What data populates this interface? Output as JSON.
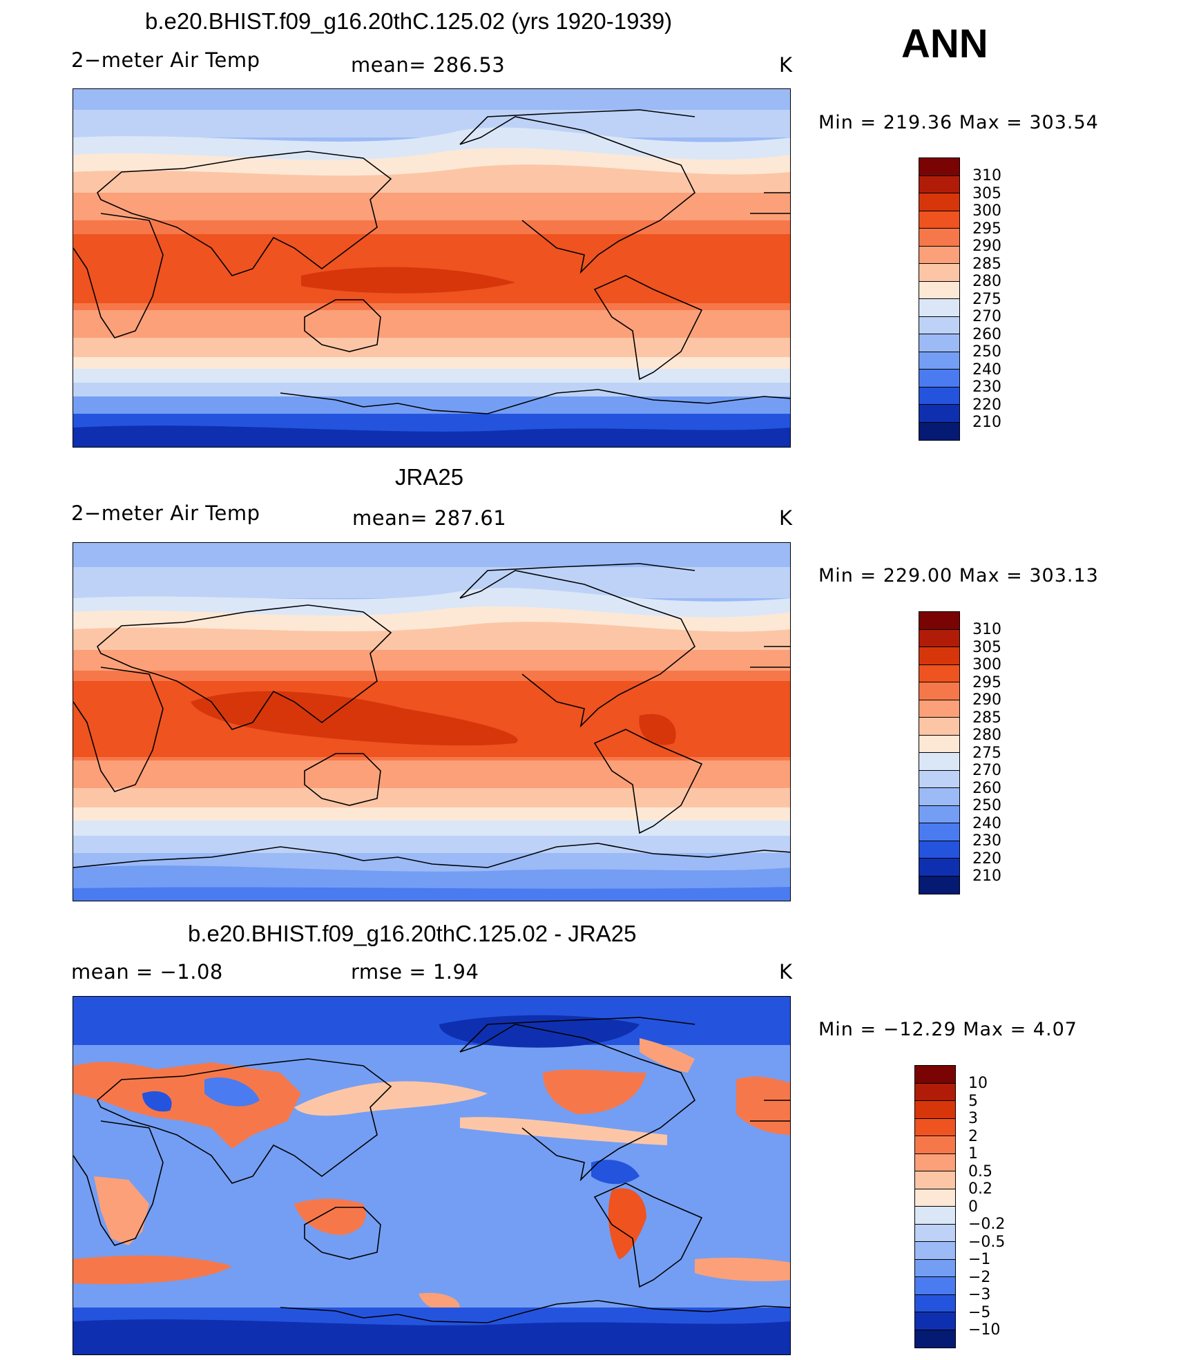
{
  "season": "ANN",
  "panels": [
    {
      "title": "b.e20.BHIST.f09_g16.20thC.125.02 (yrs 1920-1939)",
      "left_label": "2−meter Air Temp",
      "center_label": "mean=  286.53",
      "units": "K",
      "minmax": "Min  =  219.36  Max  =  303.54",
      "legend_levels": [
        "310",
        "305",
        "300",
        "295",
        "290",
        "285",
        "280",
        "275",
        "270",
        "260",
        "250",
        "240",
        "230",
        "220",
        "210"
      ],
      "legend_colors": [
        "#7a0403",
        "#b01c07",
        "#d7360b",
        "#ee5320",
        "#f6784a",
        "#fba079",
        "#fcc6a6",
        "#fde8d6",
        "#dbe7f7",
        "#bdd2f6",
        "#9bbaf6",
        "#749ef3",
        "#4a7bf0",
        "#2454de",
        "#0e30b0",
        "#051a72"
      ]
    },
    {
      "title": "JRA25",
      "left_label": "2−meter Air Temp",
      "center_label": "mean=  287.61",
      "units": "K",
      "minmax": "Min  =  229.00  Max  =  303.13",
      "legend_levels": [
        "310",
        "305",
        "300",
        "295",
        "290",
        "285",
        "280",
        "275",
        "270",
        "260",
        "250",
        "240",
        "230",
        "220",
        "210"
      ],
      "legend_colors": [
        "#7a0403",
        "#b01c07",
        "#d7360b",
        "#ee5320",
        "#f6784a",
        "#fba079",
        "#fcc6a6",
        "#fde8d6",
        "#dbe7f7",
        "#bdd2f6",
        "#9bbaf6",
        "#749ef3",
        "#4a7bf0",
        "#2454de",
        "#0e30b0",
        "#051a72"
      ]
    },
    {
      "title": "b.e20.BHIST.f09_g16.20thC.125.02 - JRA25",
      "left_label": "mean  =    −1.08",
      "center_label": "rmse  =     1.94",
      "units": "K",
      "minmax": "Min  =  −12.29  Max  =      4.07",
      "legend_levels": [
        "10",
        "5",
        "3",
        "2",
        "1",
        "0.5",
        "0.2",
        "0",
        "−0.2",
        "−0.5",
        "−1",
        "−2",
        "−3",
        "−5",
        "−10"
      ],
      "legend_colors": [
        "#7a0403",
        "#b01c07",
        "#d7360b",
        "#ee5320",
        "#f6784a",
        "#fba079",
        "#fcc6a6",
        "#fde8d6",
        "#dbe7f7",
        "#bdd2f6",
        "#9bbaf6",
        "#749ef3",
        "#4a7bf0",
        "#2454de",
        "#0e30b0",
        "#051a72"
      ]
    }
  ]
}
